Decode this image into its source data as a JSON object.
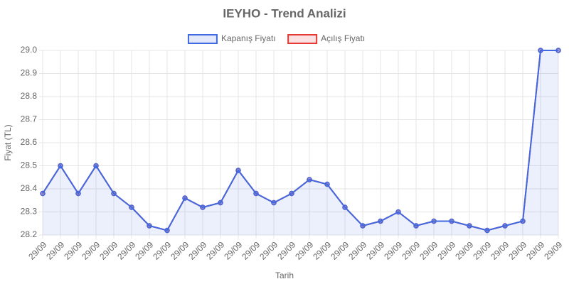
{
  "chart_data": {
    "type": "line",
    "title": "IEYHO - Trend Analizi",
    "x_label": "Tarih",
    "y_label": "Fiyat (TL)",
    "categories": [
      "29/09",
      "29/09",
      "29/09",
      "29/09",
      "29/09",
      "29/09",
      "29/09",
      "29/09",
      "29/09",
      "29/09",
      "29/09",
      "29/09",
      "29/09",
      "29/09",
      "29/09",
      "29/09",
      "29/09",
      "29/09",
      "29/09",
      "29/09",
      "29/09",
      "29/09",
      "29/09",
      "29/09",
      "29/09",
      "29/09",
      "29/09",
      "29/09",
      "29/09",
      "29/09"
    ],
    "series": [
      {
        "name": "Kapanış Fiyatı",
        "color": "#4169e1",
        "fill": true,
        "values": [
          28.38,
          28.5,
          28.38,
          28.5,
          28.38,
          28.32,
          28.24,
          28.22,
          28.36,
          28.32,
          28.34,
          28.48,
          28.38,
          28.34,
          28.38,
          28.44,
          28.42,
          28.32,
          28.24,
          28.26,
          28.3,
          28.24,
          28.26,
          28.26,
          28.24,
          28.22,
          28.24,
          28.26,
          29.0,
          29.0
        ]
      },
      {
        "name": "Açılış Fiyatı",
        "color": "#e53935",
        "fill": false,
        "values": [
          28.38,
          28.5,
          28.38,
          28.5,
          28.38,
          28.32,
          28.24,
          28.22,
          28.36,
          28.32,
          28.34,
          28.48,
          28.38,
          28.34,
          28.38,
          28.44,
          28.42,
          28.32,
          28.24,
          28.26,
          28.3,
          28.24,
          28.26,
          28.26,
          28.24,
          28.22,
          28.24,
          28.26,
          29.0,
          29.0
        ]
      }
    ],
    "ylim": [
      28.2,
      29.0
    ],
    "yticks": [
      28.2,
      28.3,
      28.4,
      28.5,
      28.6,
      28.7,
      28.8,
      28.9,
      {
        "value": 29.0,
        "label": "29.0"
      }
    ],
    "grid": true,
    "legend": "top"
  }
}
